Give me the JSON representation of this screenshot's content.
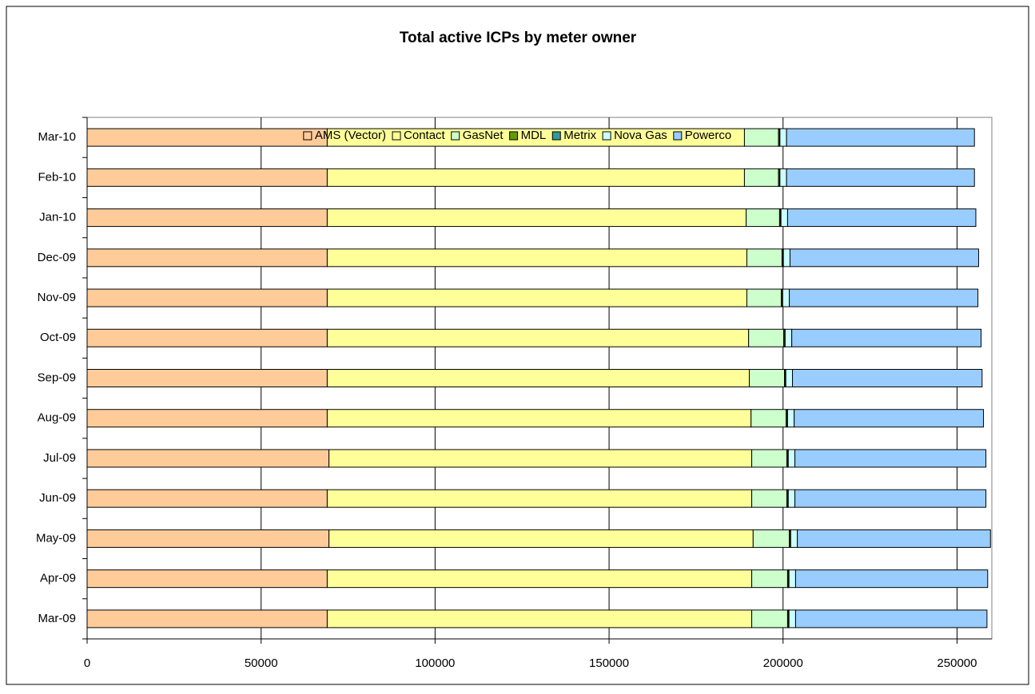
{
  "chart_data": {
    "type": "stacked_barh",
    "title": "Total active ICPs by meter owner",
    "categories": [
      "Mar-09",
      "Apr-09",
      "May-09",
      "Jun-09",
      "Jul-09",
      "Aug-09",
      "Sep-09",
      "Oct-09",
      "Nov-09",
      "Dec-09",
      "Jan-10",
      "Feb-10",
      "Mar-10"
    ],
    "series": [
      {
        "name": "AMS (Vector)",
        "color": "#ffcc99",
        "values": [
          69000,
          69000,
          69500,
          69000,
          69500,
          69000,
          69000,
          69000,
          69000,
          69000,
          69000,
          69000,
          69000
        ]
      },
      {
        "name": "Contact",
        "color": "#ffff99",
        "values": [
          122000,
          122000,
          121900,
          122000,
          121500,
          121800,
          121300,
          121100,
          120600,
          120600,
          120400,
          119900,
          119900
        ]
      },
      {
        "name": "GasNet",
        "color": "#ccffcc",
        "values": [
          10300,
          10300,
          10400,
          10100,
          10100,
          10100,
          10100,
          10100,
          9900,
          10100,
          9600,
          9800,
          9800
        ]
      },
      {
        "name": "MDL",
        "color": "#669900",
        "values": [
          300,
          300,
          300,
          300,
          300,
          300,
          300,
          300,
          300,
          300,
          300,
          300,
          300
        ]
      },
      {
        "name": "Metrix",
        "color": "#339999",
        "values": [
          100,
          100,
          100,
          100,
          100,
          100,
          100,
          100,
          100,
          100,
          100,
          100,
          100
        ]
      },
      {
        "name": "Nova Gas",
        "color": "#ccffff",
        "values": [
          1900,
          1900,
          1900,
          1900,
          1900,
          1900,
          1900,
          1900,
          1900,
          1900,
          1900,
          1900,
          1900
        ]
      },
      {
        "name": "Powerco",
        "color": "#99ccff",
        "values": [
          55000,
          55200,
          55500,
          54900,
          54900,
          54400,
          54500,
          54400,
          54200,
          54200,
          54100,
          54000,
          54000
        ]
      }
    ],
    "xlim": [
      0,
      260000
    ],
    "xticks": [
      0,
      50000,
      100000,
      150000,
      200000,
      250000
    ],
    "grid": true,
    "legend": "top"
  }
}
